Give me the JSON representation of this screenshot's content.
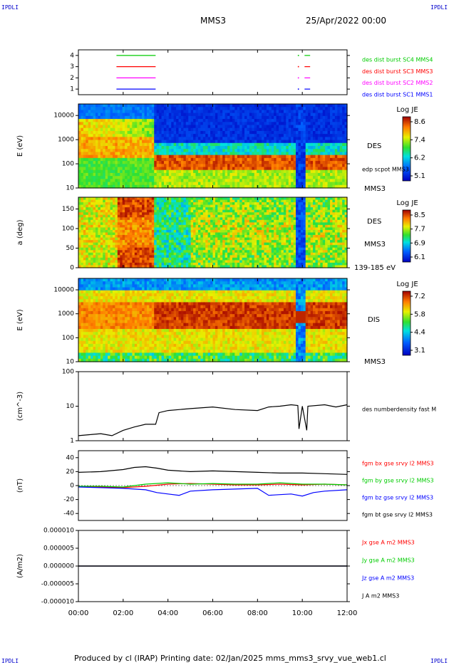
{
  "header": {
    "corner_tl": "IPDLI",
    "corner_tr": "IPDLI",
    "corner_bl": "IPDLI",
    "corner_br": "IPDLI",
    "spacecraft": "MMS3",
    "datetime": "25/Apr/2022 00:00"
  },
  "footer": {
    "text": "Produced by cl (IRAP)   Printing date: 02/Jan/2025   mms_mms3_srvy_vue_web1.cl"
  },
  "colors": {
    "blue": "#0000ff",
    "magenta": "#ff00ff",
    "red": "#ff0000",
    "green": "#00cc00",
    "black": "#000000"
  },
  "chart_data": [
    {
      "id": "burst",
      "type": "line",
      "y_ticks": [
        "1",
        "2",
        "3",
        "4"
      ],
      "ylim": [
        0.5,
        4.5
      ],
      "legend": [
        {
          "label": "des dist burst SC1 MMS1",
          "color": "#0000ff",
          "level": 1
        },
        {
          "label": "des dist burst SC2 MMS2",
          "color": "#ff00ff",
          "level": 2
        },
        {
          "label": "des dist burst SC3 MMS3",
          "color": "#ff0000",
          "level": 3
        },
        {
          "label": "des dist burst SC4 MMS4",
          "color": "#00cc00",
          "level": 4
        }
      ],
      "segments_hours": [
        [
          1.7,
          3.45
        ],
        [
          10.1,
          10.35
        ]
      ],
      "dot_hours": [
        9.8
      ]
    },
    {
      "id": "des-energy",
      "type": "heatmap",
      "ylabel": "E (eV)",
      "y_scale": "log",
      "ylim": [
        10,
        30000
      ],
      "y_ticks": [
        "10",
        "100",
        "1000",
        "10000"
      ],
      "labels": [
        "DES",
        "edp scpot MMS3",
        "MMS3"
      ],
      "colorbar": {
        "title": "Log JE",
        "ticks": [
          "8.6",
          "7.4",
          "6.2",
          "5.1"
        ]
      }
    },
    {
      "id": "des-pitch",
      "type": "heatmap",
      "ylabel": "a (deg)",
      "ylim": [
        0,
        180
      ],
      "y_ticks": [
        "0",
        "50",
        "100",
        "150"
      ],
      "labels": [
        "DES",
        "MMS3",
        "139-185 eV"
      ],
      "colorbar": {
        "title": "Log JE",
        "ticks": [
          "8.5",
          "7.7",
          "6.9",
          "6.1"
        ]
      }
    },
    {
      "id": "dis-energy",
      "type": "heatmap",
      "ylabel": "E (eV)",
      "y_scale": "log",
      "ylim": [
        10,
        30000
      ],
      "y_ticks": [
        "10",
        "100",
        "1000",
        "10000"
      ],
      "labels": [
        "DIS",
        "MMS3"
      ],
      "colorbar": {
        "title": "Log JE",
        "ticks": [
          "7.2",
          "5.8",
          "4.4",
          "3.1"
        ]
      }
    },
    {
      "id": "density",
      "type": "line",
      "ylabel": "(cm^-3)",
      "y_scale": "log",
      "ylim": [
        1,
        100
      ],
      "y_ticks": [
        "1",
        "10",
        "100"
      ],
      "series": [
        {
          "name": "des numberdensity fast M",
          "color": "#000000",
          "x": [
            0,
            0.5,
            1.0,
            1.5,
            2.0,
            2.5,
            3.0,
            3.45,
            3.6,
            4.0,
            5.0,
            6.0,
            7.0,
            8.0,
            8.5,
            9.0,
            9.5,
            9.8,
            9.85,
            10.0,
            10.2,
            10.25,
            11.0,
            11.5,
            12.0
          ],
          "y": [
            1.4,
            1.5,
            1.6,
            1.4,
            2.0,
            2.5,
            3.0,
            3.0,
            6.5,
            7.5,
            8.5,
            9.5,
            8.0,
            7.5,
            9.5,
            10.0,
            11.0,
            10.5,
            2.2,
            10.0,
            2.0,
            10.0,
            11.0,
            9.5,
            11.0
          ]
        }
      ]
    },
    {
      "id": "magnetic-field",
      "type": "line",
      "ylabel": "(nT)",
      "ylim": [
        -50,
        50
      ],
      "y_ticks": [
        "-40",
        "-20",
        "0",
        "20",
        "40"
      ],
      "series": [
        {
          "name": "fgm bx gse srvy l2 MMS3",
          "color": "#ff0000",
          "x": [
            0,
            1,
            2,
            3,
            4,
            5,
            6,
            7,
            8,
            9,
            10,
            11,
            12
          ],
          "y": [
            -1,
            -2,
            -3,
            -1,
            2,
            3,
            2,
            1,
            1,
            2,
            1,
            2,
            1
          ]
        },
        {
          "name": "fgm by gse srvy l2 MMS3",
          "color": "#00cc00",
          "x": [
            0,
            1,
            2,
            3,
            4,
            5,
            6,
            7,
            8,
            9,
            10,
            11,
            12
          ],
          "y": [
            -1,
            -1,
            -2,
            2,
            4,
            2,
            3,
            2,
            2,
            4,
            2,
            2,
            1
          ]
        },
        {
          "name": "fgm bz gse srvy l2 MMS3",
          "color": "#0000ff",
          "x": [
            0,
            1,
            2,
            3,
            3.5,
            4,
            4.5,
            5,
            6,
            7,
            8,
            8.5,
            9,
            9.5,
            10,
            10.5,
            11,
            12
          ],
          "y": [
            -2,
            -3,
            -4,
            -6,
            -10,
            -12,
            -14,
            -8,
            -6,
            -5,
            -4,
            -14,
            -13,
            -12,
            -15,
            -10,
            -8,
            -6
          ]
        },
        {
          "name": "fgm bt gse srvy l2 MMS3",
          "color": "#000000",
          "x": [
            0,
            1,
            2,
            2.5,
            3,
            3.5,
            4,
            5,
            6,
            7,
            8,
            9,
            10,
            11,
            12
          ],
          "y": [
            19,
            20,
            23,
            26,
            27,
            25,
            22,
            20,
            21,
            20,
            19,
            18,
            18,
            17,
            16
          ]
        }
      ]
    },
    {
      "id": "current-density",
      "type": "line",
      "ylabel": "(A/m2)",
      "ylim": [
        -1e-05,
        1e-05
      ],
      "y_ticks": [
        "-0.000010",
        "-0.000005",
        "0.000000",
        "0.000005",
        "0.000010"
      ],
      "series": [
        {
          "name": "Jx gse A m2 MMS3",
          "color": "#ff0000",
          "x": [
            0,
            12
          ],
          "y": [
            0,
            0
          ]
        },
        {
          "name": "Jy gse A m2 MMS3",
          "color": "#00cc00",
          "x": [
            0,
            12
          ],
          "y": [
            0,
            0
          ]
        },
        {
          "name": "Jz gse A m2 MMS3",
          "color": "#0000ff",
          "x": [
            0,
            12
          ],
          "y": [
            0,
            0
          ]
        },
        {
          "name": "J A m2 MMS3",
          "color": "#000000",
          "x": [
            0,
            12
          ],
          "y": [
            0,
            0
          ]
        }
      ]
    }
  ],
  "time_axis": {
    "ticks": [
      "00:00",
      "02:00",
      "04:00",
      "06:00",
      "08:00",
      "10:00",
      "12:00"
    ],
    "range_hours": [
      0,
      12
    ]
  }
}
